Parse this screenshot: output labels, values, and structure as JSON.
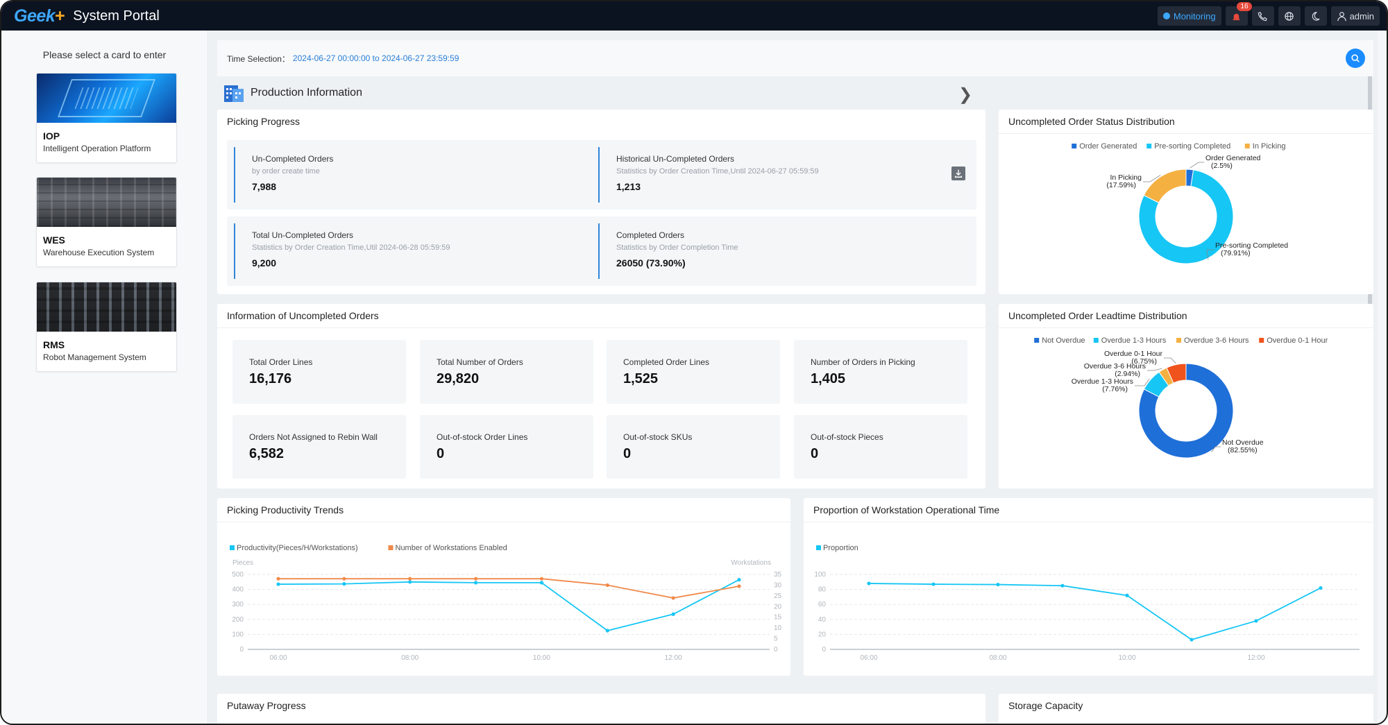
{
  "app": {
    "logo": "Geek",
    "logo_plus": "+",
    "title": "System Portal"
  },
  "topbar": {
    "monitoring": "Monitoring",
    "alert_count": "16",
    "user": "admin"
  },
  "sidebar": {
    "title": "Please select a card to enter",
    "cards": [
      {
        "code": "IOP",
        "desc": "Intelligent Operation Platform"
      },
      {
        "code": "WES",
        "desc": "Warehouse Execution System"
      },
      {
        "code": "RMS",
        "desc": "Robot Management System"
      }
    ]
  },
  "time_selection": {
    "label": "Time Selection：",
    "value": "2024-06-27 00:00:00 to 2024-06-27 23:59:59"
  },
  "section": {
    "title": "Production Information"
  },
  "picking_progress": {
    "title": "Picking Progress",
    "items": [
      {
        "title": "Un-Completed Orders",
        "sub": "by order create time",
        "value": "7,988"
      },
      {
        "title": "Historical Un-Completed Orders",
        "sub": "Statistics by Order Creation Time,Until 2024-06-27 05:59:59",
        "value": "1,213"
      },
      {
        "title": "Total Un-Completed Orders",
        "sub": "Statistics by Order Creation Time,Util 2024-06-28 05:59:59",
        "value": "9,200"
      },
      {
        "title": "Completed Orders",
        "sub": "Statistics by Order Completion Time",
        "value": "26050 (73.90%)"
      }
    ]
  },
  "uncompleted_info": {
    "title": "Information of Uncompleted Orders",
    "cards": [
      {
        "label": "Total Order Lines",
        "value": "16,176"
      },
      {
        "label": "Total Number of Orders",
        "value": "29,820"
      },
      {
        "label": "Completed Order Lines",
        "value": "1,525"
      },
      {
        "label": "Number of Orders in Picking",
        "value": "1,405"
      },
      {
        "label": "Orders Not Assigned to Rebin Wall",
        "value": "6,582"
      },
      {
        "label": "Out-of-stock Order Lines",
        "value": "0"
      },
      {
        "label": "Out-of-stock SKUs",
        "value": "0"
      },
      {
        "label": "Out-of-stock Pieces",
        "value": "0"
      }
    ]
  },
  "status_dist": {
    "title": "Uncompleted Order Status Distribution",
    "legend": [
      "Order Generated",
      "Pre-sorting Completed",
      "In Picking"
    ],
    "colors": [
      "#1f6fd8",
      "#16c6f5",
      "#f5b042"
    ],
    "values": [
      2.5,
      79.91,
      17.59
    ],
    "labels": [
      {
        "name": "Order Generated",
        "pct": "(2.5%)"
      },
      {
        "name": "Pre-sorting Completed",
        "pct": "(79.91%)"
      },
      {
        "name": "In Picking",
        "pct": "(17.59%)"
      }
    ]
  },
  "leadtime_dist": {
    "title": "Uncompleted Order Leadtime Distribution",
    "legend": [
      "Not Overdue",
      "Overdue 1-3 Hours",
      "Overdue 3-6 Hours",
      "Overdue 0-1 Hour"
    ],
    "colors": [
      "#1f6fd8",
      "#16c6f5",
      "#f5b042",
      "#f0531c"
    ],
    "values": [
      82.55,
      7.76,
      2.94,
      6.75
    ],
    "labels": [
      {
        "name": "Not Overdue",
        "pct": "(82.55%)"
      },
      {
        "name": "Overdue 1-3 Hours",
        "pct": "(7.76%)"
      },
      {
        "name": "Overdue 3-6 Hours",
        "pct": "(2.94%)"
      },
      {
        "name": "Overdue 0-1 Hour",
        "pct": "(6.75%)"
      }
    ]
  },
  "productivity": {
    "title": "Picking Productivity Trends",
    "legend": [
      "Productivity(Pieces/H/Workstations)",
      "Number of Workstations Enabled"
    ],
    "left_unit": "Pieces",
    "right_unit": "Workstations",
    "left_ticks": [
      "500",
      "400",
      "300",
      "200",
      "100",
      "0"
    ],
    "right_ticks": [
      "35",
      "30",
      "25",
      "20",
      "15",
      "10",
      "5",
      "0"
    ],
    "x_ticks": [
      "06:00",
      "08:00",
      "10:00",
      "12:00"
    ]
  },
  "proportion": {
    "title": "Proportion of Workstation Operational Time",
    "legend": [
      "Proportion"
    ],
    "y_ticks": [
      "100",
      "80",
      "60",
      "40",
      "20",
      "0"
    ],
    "x_ticks": [
      "06:00",
      "08:00",
      "10:00",
      "12:00"
    ]
  },
  "bottom": {
    "putaway": "Putaway Progress",
    "storage": "Storage Capacity"
  },
  "chart_data": [
    {
      "type": "line",
      "title": "Picking Productivity Trends",
      "x": [
        "06:00",
        "07:00",
        "08:00",
        "09:00",
        "10:00",
        "11:00",
        "12:00",
        "13:00"
      ],
      "series": [
        {
          "name": "Productivity(Pieces/H/Workstations)",
          "axis": "left",
          "color": "#16c6f5",
          "values": [
            435,
            437,
            450,
            445,
            445,
            125,
            235,
            465
          ]
        },
        {
          "name": "Number of Workstations Enabled",
          "axis": "right",
          "color": "#f08a4b",
          "values": [
            33,
            33,
            33,
            33,
            33,
            30,
            24,
            29.5
          ]
        }
      ],
      "ylim": [
        0,
        500
      ],
      "y2lim": [
        0,
        35
      ],
      "grid": true,
      "legend": "top-left"
    },
    {
      "type": "line",
      "title": "Proportion of Workstation Operational Time",
      "x": [
        "06:00",
        "07:00",
        "08:00",
        "09:00",
        "10:00",
        "11:00",
        "12:00",
        "13:00"
      ],
      "series": [
        {
          "name": "Proportion",
          "color": "#16c6f5",
          "values": [
            88,
            87,
            86.5,
            85,
            72,
            13,
            38,
            82
          ]
        }
      ],
      "ylim": [
        0,
        100
      ],
      "grid": true,
      "legend": "top-left"
    },
    {
      "type": "pie",
      "title": "Uncompleted Order Status Distribution",
      "categories": [
        "Order Generated",
        "Pre-sorting Completed",
        "In Picking"
      ],
      "values": [
        2.5,
        79.91,
        17.59
      ]
    },
    {
      "type": "pie",
      "title": "Uncompleted Order Leadtime Distribution",
      "categories": [
        "Not Overdue",
        "Overdue 1-3 Hours",
        "Overdue 3-6 Hours",
        "Overdue 0-1 Hour"
      ],
      "values": [
        82.55,
        7.76,
        2.94,
        6.75
      ]
    }
  ]
}
